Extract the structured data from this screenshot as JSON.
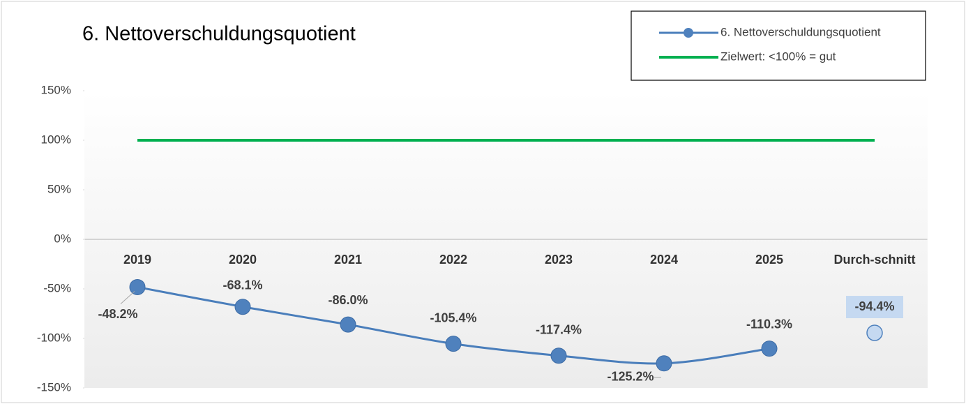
{
  "chart_data": {
    "type": "line",
    "title": "6. Nettoverschuldungsquotient",
    "categories": [
      "2019",
      "2020",
      "2021",
      "2022",
      "2023",
      "2024",
      "2025",
      "Durch-schnitt"
    ],
    "series": [
      {
        "name": "6. Nettoverschuldungsquotient",
        "color": "#4a7ebb",
        "values": [
          -48.2,
          -68.1,
          -86.0,
          -105.4,
          -117.4,
          -125.2,
          -110.3,
          null
        ],
        "value_labels": [
          "-48.2%",
          "-68.1%",
          "-86.0%",
          "-105.4%",
          "-117.4%",
          "-125.2%",
          "-110.3%",
          null
        ]
      },
      {
        "name": "Zielwert: <100% = gut",
        "color": "#00b050",
        "values": [
          100,
          100,
          100,
          100,
          100,
          100,
          100,
          100
        ]
      }
    ],
    "average": {
      "value": -94.4,
      "value_label": "-94.4%",
      "color": "#c5d9f1"
    },
    "ylim": [
      -150,
      150
    ],
    "yticks": [
      {
        "value": -150,
        "label": "-150%"
      },
      {
        "value": -100,
        "label": "-100%"
      },
      {
        "value": -50,
        "label": "-50%"
      },
      {
        "value": 0,
        "label": "0%"
      },
      {
        "value": 50,
        "label": "50%"
      },
      {
        "value": 100,
        "label": "100%"
      },
      {
        "value": 150,
        "label": "150%"
      }
    ],
    "legend": "top-right"
  }
}
